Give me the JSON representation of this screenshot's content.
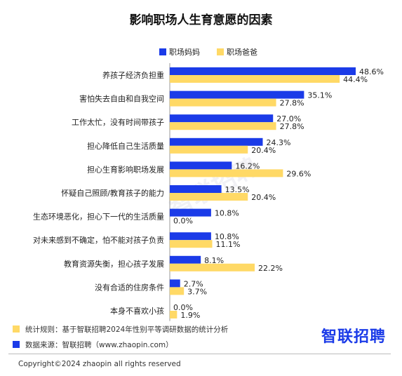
{
  "title": "影响职场人生育意愿的因素",
  "watermark": "智联招聘",
  "brand": "智联招聘",
  "notes": [
    {
      "text": "统计规则：基于智联招聘2024年性别平等调研数据的统计分析",
      "color": "#FFD966"
    },
    {
      "text": "数据来源：智联招聘（www.zhaopin.com）",
      "color": "#1B3BE8"
    }
  ],
  "copyright": "Copyright©2024 zhaopin all rights reserved",
  "chart_data": {
    "type": "bar",
    "orientation": "horizontal",
    "title": "影响职场人生育意愿的因素",
    "legend_position": "top-right",
    "categories": [
      "养孩子经济负担重",
      "害怕失去自由和自我空间",
      "工作太忙，没有时间带孩子",
      "担心降低自己生活质量",
      "担心生育影响职场发展",
      "怀疑自己照顾/教育孩子的能力",
      "生态环境恶化，担心下一代的生活质量",
      "对未来感到不确定，怕不能对孩子负责",
      "教育资源失衡，担心孩子发展",
      "没有合适的住房条件",
      "本身不喜欢小孩"
    ],
    "series": [
      {
        "name": "职场妈妈",
        "color": "#1B3BE8",
        "values": [
          48.6,
          35.1,
          27.0,
          24.3,
          16.2,
          13.5,
          10.8,
          10.8,
          8.1,
          2.7,
          0.0
        ],
        "labels": [
          "48.6%",
          "35.1%",
          "27.0%",
          "24.3%",
          "16.2%",
          "13.5%",
          "10.8%",
          "10.8%",
          "8.1%",
          "2.7%",
          "0.0%"
        ]
      },
      {
        "name": "职场爸爸",
        "color": "#FFD966",
        "values": [
          44.4,
          27.8,
          27.8,
          20.4,
          29.6,
          20.4,
          0.0,
          11.1,
          22.2,
          3.7,
          1.9
        ],
        "labels": [
          "44.4%",
          "27.8%",
          "27.8%",
          "20.4%",
          "29.6%",
          "20.4%",
          "0.0%",
          "11.1%",
          "22.2%",
          "3.7%",
          "1.9%"
        ]
      }
    ],
    "xlim": [
      0,
      48.6
    ],
    "grid": false
  }
}
